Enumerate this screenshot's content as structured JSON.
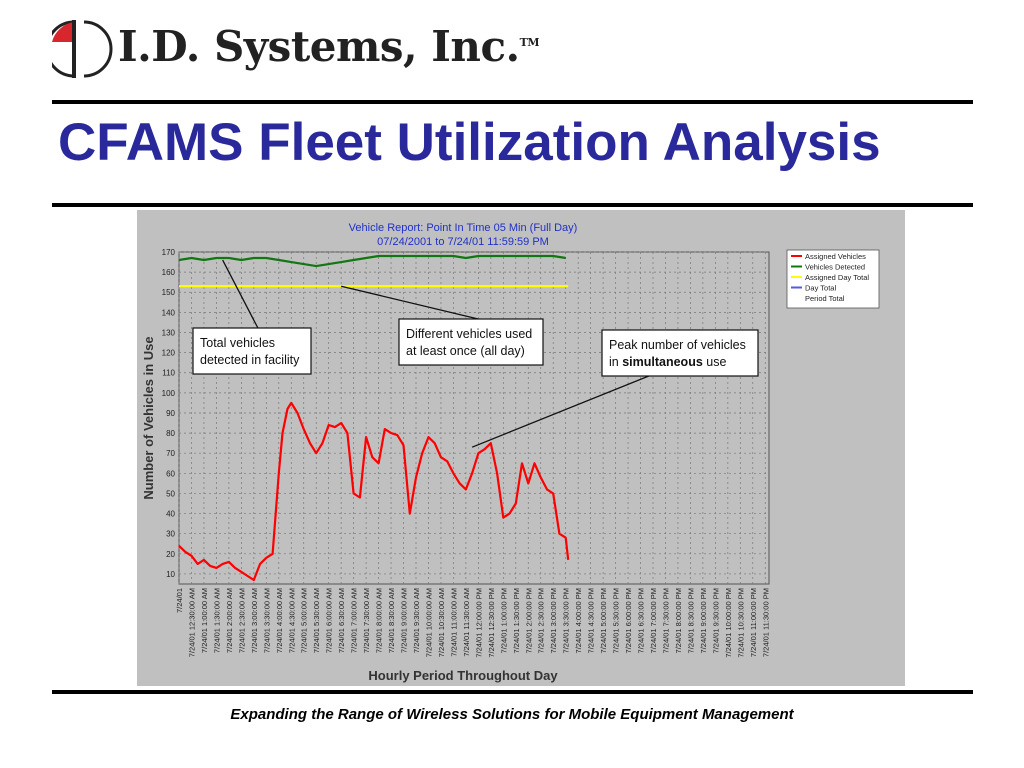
{
  "header": {
    "company": "I.D. Systems, Inc.",
    "trademark": "TM",
    "title": "CFAMS Fleet Utilization Analysis"
  },
  "footer": {
    "tagline": "Expanding the Range of Wireless Solutions for Mobile Equipment Management"
  },
  "colors": {
    "title": "#29299b",
    "logo_red": "#d8262e",
    "chart_bg": "#c0c0c0",
    "assigned": "#ff0000",
    "detected": "#117711",
    "assigned_day_total": "#ffff00",
    "day_total": "#5a5ad8"
  },
  "chart_data": {
    "type": "line",
    "title": "Vehicle Report: Point In Time 05 Min (Full Day)",
    "subtitle": "07/24/2001 to 7/24/01 11:59:59 PM",
    "xlabel": "Hourly Period Throughout Day",
    "ylabel": "Number of Vehicles in Use",
    "ylim": [
      5,
      170
    ],
    "yticks": [
      10,
      20,
      30,
      40,
      50,
      60,
      70,
      80,
      90,
      100,
      110,
      120,
      130,
      140,
      150,
      160,
      170
    ],
    "grid": true,
    "legend_position": "top-right",
    "x_tick_labels": [
      "7/24/01",
      "7/24/01 12:30:00 AM",
      "7/24/01 1:00:00 AM",
      "7/24/01 1:30:00 AM",
      "7/24/01 2:00:00 AM",
      "7/24/01 2:30:00 AM",
      "7/24/01 3:00:00 AM",
      "7/24/01 3:30:00 AM",
      "7/24/01 4:00:00 AM",
      "7/24/01 4:30:00 AM",
      "7/24/01 5:00:00 AM",
      "7/24/01 5:30:00 AM",
      "7/24/01 6:00:00 AM",
      "7/24/01 6:30:00 AM",
      "7/24/01 7:00:00 AM",
      "7/24/01 7:30:00 AM",
      "7/24/01 8:00:00 AM",
      "7/24/01 8:30:00 AM",
      "7/24/01 9:00:00 AM",
      "7/24/01 9:30:00 AM",
      "7/24/01 10:00:00 AM",
      "7/24/01 10:30:00 AM",
      "7/24/01 11:00:00 AM",
      "7/24/01 11:30:00 AM",
      "7/24/01 12:00:00 PM",
      "7/24/01 12:30:00 PM",
      "7/24/01 1:00:00 PM",
      "7/24/01 1:30:00 PM",
      "7/24/01 2:00:00 PM",
      "7/24/01 2:30:00 PM",
      "7/24/01 3:00:00 PM",
      "7/24/01 3:30:00 PM",
      "7/24/01 4:00:00 PM",
      "7/24/01 4:30:00 PM",
      "7/24/01 5:00:00 PM",
      "7/24/01 5:30:00 PM",
      "7/24/01 6:00:00 PM",
      "7/24/01 6:30:00 PM",
      "7/24/01 7:00:00 PM",
      "7/24/01 7:30:00 PM",
      "7/24/01 8:00:00 PM",
      "7/24/01 8:30:00 PM",
      "7/24/01 9:00:00 PM",
      "7/24/01 9:30:00 PM",
      "7/24/01 10:00:00 PM",
      "7/24/01 10:30:00 PM",
      "7/24/01 11:00:00 PM",
      "7/24/01 11:30:00 PM"
    ],
    "series": [
      {
        "name": "Assigned Vehicles",
        "color": "#ff0000",
        "points": [
          [
            0,
            24
          ],
          [
            0.5,
            21
          ],
          [
            1,
            19
          ],
          [
            1.5,
            15
          ],
          [
            2,
            17
          ],
          [
            2.5,
            14
          ],
          [
            3,
            13
          ],
          [
            3.5,
            15
          ],
          [
            4,
            16
          ],
          [
            4.5,
            13
          ],
          [
            5,
            11
          ],
          [
            5.5,
            9
          ],
          [
            6,
            7
          ],
          [
            6.5,
            15
          ],
          [
            7,
            18
          ],
          [
            7.5,
            20
          ],
          [
            8,
            60
          ],
          [
            8.3,
            80
          ],
          [
            8.7,
            92
          ],
          [
            9,
            95
          ],
          [
            9.5,
            90
          ],
          [
            10,
            82
          ],
          [
            10.5,
            75
          ],
          [
            11,
            70
          ],
          [
            11.5,
            75
          ],
          [
            12,
            84
          ],
          [
            12.5,
            83
          ],
          [
            13,
            85
          ],
          [
            13.5,
            80
          ],
          [
            14,
            50
          ],
          [
            14.5,
            48
          ],
          [
            15,
            78
          ],
          [
            15.5,
            68
          ],
          [
            16,
            65
          ],
          [
            16.5,
            82
          ],
          [
            17,
            80
          ],
          [
            17.5,
            79
          ],
          [
            18,
            74
          ],
          [
            18.5,
            40
          ],
          [
            19,
            58
          ],
          [
            19.5,
            70
          ],
          [
            20,
            78
          ],
          [
            20.5,
            75
          ],
          [
            21,
            68
          ],
          [
            21.5,
            66
          ],
          [
            22,
            60
          ],
          [
            22.5,
            55
          ],
          [
            23,
            52
          ],
          [
            23.5,
            60
          ],
          [
            24,
            70
          ],
          [
            24.5,
            72
          ],
          [
            25,
            75
          ],
          [
            25.5,
            60
          ],
          [
            26,
            38
          ],
          [
            26.5,
            40
          ],
          [
            27,
            45
          ],
          [
            27.5,
            65
          ],
          [
            28,
            55
          ],
          [
            28.5,
            65
          ],
          [
            29,
            58
          ],
          [
            29.5,
            52
          ],
          [
            30,
            50
          ],
          [
            30.5,
            30
          ],
          [
            31,
            28
          ],
          [
            31.2,
            17
          ]
        ]
      },
      {
        "name": "Vehicles Detected",
        "color": "#117711",
        "points": [
          [
            0,
            166
          ],
          [
            1,
            167
          ],
          [
            2,
            166
          ],
          [
            3,
            167
          ],
          [
            4,
            167
          ],
          [
            5,
            166
          ],
          [
            6,
            167
          ],
          [
            7,
            167
          ],
          [
            8,
            166
          ],
          [
            9,
            165
          ],
          [
            10,
            164
          ],
          [
            11,
            163
          ],
          [
            12,
            164
          ],
          [
            13,
            165
          ],
          [
            14,
            166
          ],
          [
            15,
            167
          ],
          [
            16,
            168
          ],
          [
            17,
            168
          ],
          [
            18,
            168
          ],
          [
            19,
            168
          ],
          [
            20,
            168
          ],
          [
            21,
            168
          ],
          [
            22,
            168
          ],
          [
            23,
            167
          ],
          [
            24,
            168
          ],
          [
            25,
            168
          ],
          [
            26,
            168
          ],
          [
            27,
            168
          ],
          [
            28,
            168
          ],
          [
            29,
            168
          ],
          [
            30,
            168
          ],
          [
            31,
            167
          ]
        ]
      },
      {
        "name": "Assigned Day Total",
        "color": "#ffff00",
        "points": [
          [
            0,
            153
          ],
          [
            31.2,
            153
          ]
        ]
      },
      {
        "name": "Day Total",
        "color": "#5a5ad8",
        "points": []
      },
      {
        "name": "Period Total",
        "color": "",
        "points": []
      }
    ],
    "annotations": [
      {
        "lines": [
          "Total vehicles",
          "detected in facility"
        ],
        "points_to": [
          3.5,
          166
        ]
      },
      {
        "lines": [
          "Different vehicles used",
          "at least once (all day)"
        ],
        "points_to": [
          13,
          153
        ]
      },
      {
        "lines": [
          "Peak number of vehicles",
          "in simultaneous use"
        ],
        "points_to": [
          23.5,
          73
        ],
        "bold_word": "simultaneous"
      }
    ]
  }
}
